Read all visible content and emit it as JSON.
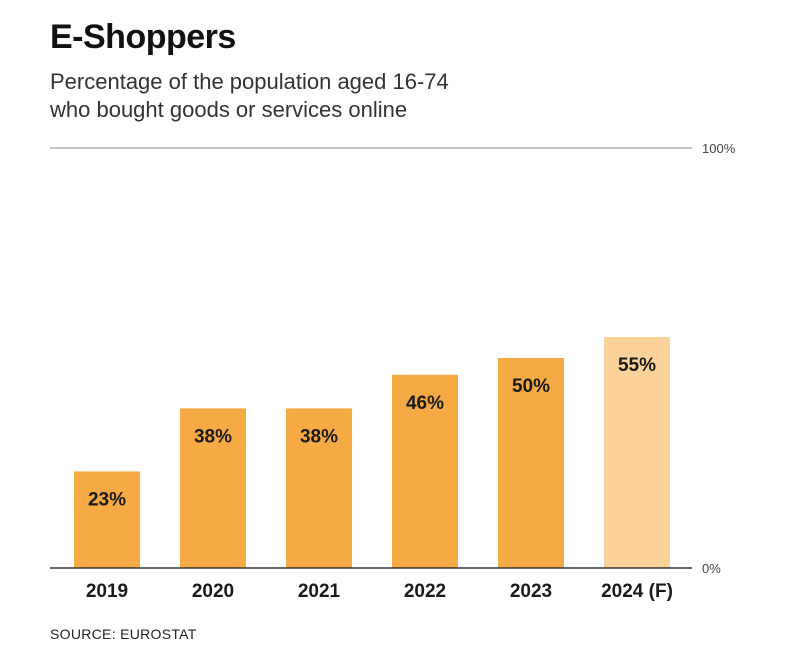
{
  "title": "E-Shoppers",
  "subtitle": {
    "line1": "Percentage of the population aged 16-74",
    "line2": "who bought goods or services online"
  },
  "source": "SOURCE: EUROSTAT",
  "colors": {
    "bar": "#f6aa44",
    "bar_forecast": "#fbd299",
    "axis": "#333333",
    "gridline": "#888888",
    "label": "#1a1a1a"
  },
  "chart_data": {
    "type": "bar",
    "title": "E-Shoppers",
    "xlabel": "",
    "ylabel": "",
    "ylim": [
      0,
      100
    ],
    "y_tick_labels": [
      "0%",
      "100%"
    ],
    "categories": [
      "2019",
      "2020",
      "2021",
      "2022",
      "2023",
      "2024 (F)"
    ],
    "values": [
      23,
      38,
      38,
      46,
      50,
      55
    ],
    "value_labels": [
      "23%",
      "38%",
      "38%",
      "46%",
      "50%",
      "55%"
    ],
    "forecast": [
      false,
      false,
      false,
      false,
      false,
      true
    ]
  }
}
